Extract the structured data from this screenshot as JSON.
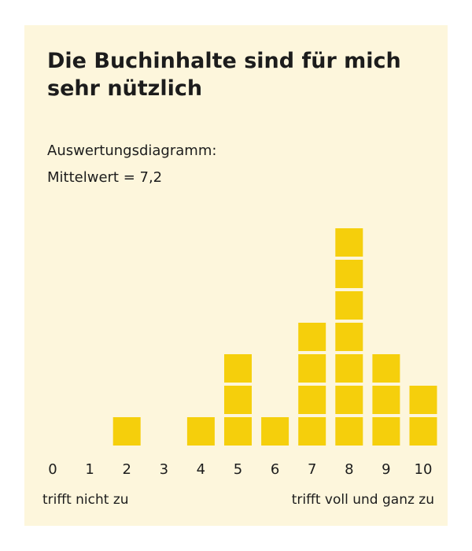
{
  "chart_data": {
    "type": "bar",
    "title": "Die Buchinhalte sind für mich sehr nützlich",
    "subtitle_lines": [
      "Auswertungsdiagramm:",
      "Mittelwert = 7,2"
    ],
    "categories": [
      "0",
      "1",
      "2",
      "3",
      "4",
      "5",
      "6",
      "7",
      "8",
      "9",
      "10"
    ],
    "values": [
      0,
      0,
      1,
      0,
      1,
      3,
      1,
      4,
      7,
      3,
      2
    ],
    "x_label_left": "trifft nicht zu",
    "x_label_right": "trifft voll und ganz zu",
    "ylim": [
      0,
      7
    ],
    "grid": false,
    "bar_color": "#f5cf0c",
    "background_color": "#fdf6dc",
    "text_color": "#1c1c1c"
  }
}
